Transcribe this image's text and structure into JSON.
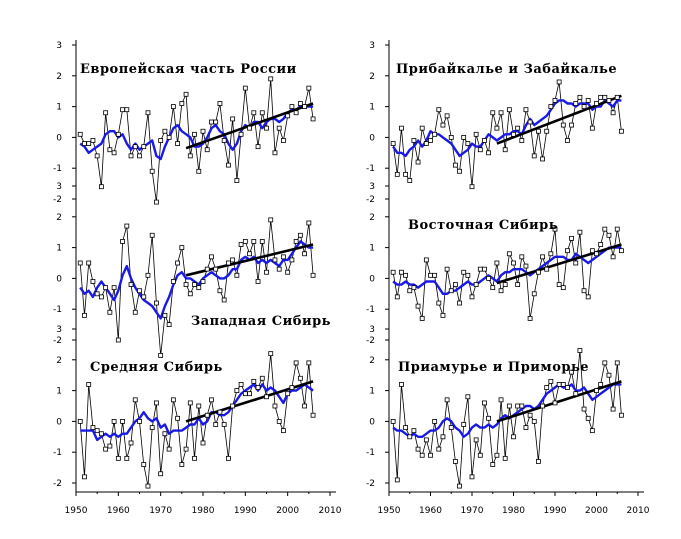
{
  "chart_data": {
    "type": "line",
    "x_ticks": [
      1950,
      1960,
      1970,
      1980,
      1990,
      2000,
      2010
    ],
    "y_ticks": [
      3,
      2,
      1,
      0,
      -1,
      -2
    ],
    "xlim": [
      1950,
      2010
    ],
    "ylim": [
      -2.3,
      3.0
    ],
    "colors": {
      "annual": "#000000",
      "smoothed": "#1a1ae6",
      "trend": "#000000"
    },
    "panels": [
      {
        "title": "Европейская часть России",
        "col": 0,
        "row": 0,
        "annual": [
          0.1,
          -0.2,
          -0.2,
          -0.1,
          -0.6,
          -1.6,
          0.8,
          -0.4,
          -0.5,
          0.1,
          0.9,
          0.9,
          -0.6,
          -0.3,
          -0.6,
          -0.3,
          0.8,
          -1.1,
          -2.1,
          -0.1,
          0.2,
          0.0,
          1.0,
          -0.2,
          1.1,
          1.4,
          -0.6,
          0.1,
          -1.1,
          0.2,
          -0.4,
          0.5,
          0.5,
          1.1,
          -0.1,
          -0.9,
          0.6,
          -1.4,
          0.1,
          1.6,
          0.3,
          0.8,
          -0.3,
          0.8,
          0.3,
          1.9,
          -0.5,
          0.3,
          -0.1,
          0.7,
          1.0,
          0.8,
          1.1,
          1.0,
          1.6,
          0.6
        ],
        "smoothed": [
          -0.2,
          -0.3,
          -0.5,
          -0.4,
          -0.3,
          -0.2,
          0.1,
          0.2,
          0.2,
          0.0,
          0.1,
          -0.2,
          -0.4,
          -0.2,
          -0.4,
          -0.3,
          -0.2,
          -0.1,
          -0.6,
          -0.7,
          -0.3,
          0.0,
          0.3,
          0.4,
          0.2,
          0.1,
          0.0,
          -0.3,
          -0.3,
          -0.2,
          0.0,
          0.3,
          0.4,
          0.2,
          0.1,
          -0.2,
          -0.4,
          -0.2,
          0.2,
          0.4,
          0.3,
          0.5,
          0.5,
          0.3,
          0.5,
          0.6,
          0.6,
          0.5,
          0.6,
          0.8,
          0.9,
          0.9,
          1.0,
          1.0,
          1.0,
          1.0
        ],
        "trend": {
          "x": [
            1976,
            2006
          ],
          "y": [
            -0.35,
            1.1
          ]
        }
      },
      {
        "title": "Западная Сибирь",
        "col": 0,
        "row": 1,
        "annual": [
          0.5,
          -1.2,
          0.5,
          -0.1,
          -0.5,
          -0.6,
          -0.3,
          -1.1,
          -0.3,
          -2.0,
          1.2,
          1.7,
          -0.2,
          -1.1,
          -0.4,
          -0.6,
          0.1,
          1.4,
          -0.8,
          -2.5,
          -1.2,
          -1.5,
          -0.1,
          0.5,
          1.0,
          -0.2,
          -0.5,
          -0.2,
          -0.3,
          -0.1,
          0.3,
          0.7,
          0.3,
          -0.4,
          -0.7,
          0.5,
          0.6,
          0.1,
          1.1,
          1.2,
          0.8,
          1.2,
          -0.1,
          1.2,
          0.2,
          1.9,
          0.6,
          0.3,
          0.7,
          0.2,
          0.6,
          1.2,
          1.4,
          0.8,
          1.8,
          0.1
        ],
        "smoothed": [
          -0.3,
          -0.5,
          -0.4,
          -0.6,
          -0.3,
          -0.1,
          -0.3,
          -0.5,
          -0.7,
          -0.4,
          0.1,
          0.4,
          0.0,
          -0.3,
          -0.5,
          -0.7,
          -0.8,
          -0.9,
          -1.1,
          -1.3,
          -0.9,
          -0.6,
          -0.2,
          0.1,
          0.2,
          0.0,
          0.0,
          -0.1,
          -0.2,
          0.0,
          0.1,
          0.2,
          0.1,
          0.0,
          0.0,
          0.1,
          0.3,
          0.3,
          0.6,
          0.7,
          0.6,
          0.7,
          0.5,
          0.6,
          0.5,
          0.6,
          0.5,
          0.4,
          0.6,
          0.6,
          0.8,
          1.0,
          1.2,
          1.1,
          1.0,
          1.0
        ],
        "trend": {
          "x": [
            1976,
            2006
          ],
          "y": [
            0.1,
            1.1
          ]
        }
      },
      {
        "title": "Средняя Сибирь",
        "col": 0,
        "row": 2,
        "annual": [
          0.0,
          -1.8,
          1.2,
          -0.2,
          -0.3,
          -0.4,
          -0.9,
          -0.8,
          0.0,
          -1.2,
          0.0,
          -1.2,
          -0.7,
          0.7,
          0.0,
          -1.4,
          -2.1,
          -0.2,
          0.6,
          -1.7,
          -0.4,
          -0.9,
          0.7,
          0.1,
          -1.4,
          -0.9,
          0.6,
          -1.2,
          0.5,
          -0.7,
          0.2,
          0.7,
          -0.1,
          0.3,
          -0.1,
          -1.2,
          0.5,
          1.0,
          1.2,
          0.9,
          0.9,
          1.3,
          1.1,
          1.4,
          0.8,
          2.2,
          0.5,
          0.0,
          -0.3,
          0.9,
          1.1,
          1.9,
          1.4,
          0.5,
          1.9,
          0.2
        ],
        "smoothed": [
          -0.3,
          -0.3,
          -0.3,
          -0.3,
          -0.6,
          -0.5,
          -0.4,
          -0.5,
          -0.4,
          -0.5,
          -0.4,
          -0.4,
          -0.2,
          0.0,
          0.1,
          0.3,
          0.1,
          0.0,
          0.1,
          -0.2,
          -0.1,
          -0.4,
          -0.3,
          -0.3,
          -0.3,
          -0.2,
          -0.1,
          -0.1,
          0.1,
          -0.1,
          0.0,
          0.3,
          0.3,
          0.2,
          0.2,
          0.3,
          0.5,
          0.7,
          0.9,
          1.0,
          1.1,
          1.2,
          1.0,
          1.2,
          1.0,
          1.1,
          1.0,
          0.8,
          0.6,
          0.9,
          1.0,
          1.0,
          1.1,
          1.2,
          1.1,
          1.0
        ],
        "trend": {
          "x": [
            1976,
            2006
          ],
          "y": [
            0.0,
            1.3
          ]
        }
      },
      {
        "title": "Прибайкалье и Забайкалье",
        "col": 1,
        "row": 0,
        "annual": [
          -0.2,
          -1.2,
          0.3,
          -1.2,
          -1.4,
          -0.1,
          -0.8,
          0.3,
          -0.2,
          -0.1,
          0.1,
          0.9,
          0.4,
          0.7,
          0.0,
          -0.9,
          -1.1,
          0.0,
          -0.2,
          -1.6,
          0.1,
          -0.4,
          -0.1,
          -0.5,
          0.8,
          0.3,
          0.8,
          -0.4,
          0.9,
          0.1,
          0.3,
          -0.1,
          0.9,
          0.5,
          -0.6,
          0.2,
          -0.7,
          0.2,
          1.0,
          1.2,
          1.8,
          0.4,
          -0.1,
          0.4,
          1.1,
          1.3,
          1.0,
          1.2,
          0.3,
          1.1,
          1.3,
          1.3,
          1.2,
          0.8,
          1.3,
          0.2
        ],
        "smoothed": [
          -0.3,
          -0.5,
          -0.5,
          -0.6,
          -0.4,
          -0.3,
          -0.1,
          -0.3,
          -0.1,
          0.2,
          0.1,
          0.1,
          0.0,
          -0.1,
          -0.2,
          -0.4,
          -0.6,
          -0.5,
          -0.4,
          -0.2,
          -0.3,
          -0.3,
          -0.1,
          0.1,
          0.0,
          -0.1,
          0.0,
          0.1,
          0.1,
          0.2,
          0.2,
          0.1,
          0.4,
          0.6,
          0.4,
          0.5,
          0.6,
          0.7,
          0.9,
          1.1,
          1.2,
          1.2,
          1.1,
          1.1,
          1.0,
          1.1,
          1.1,
          1.1,
          0.9,
          1.0,
          1.0,
          1.2,
          1.1,
          1.0,
          1.2,
          1.2
        ],
        "trend": {
          "x": [
            1976,
            2006
          ],
          "y": [
            -0.2,
            1.35
          ]
        }
      },
      {
        "title": "Восточная Сибирь",
        "col": 1,
        "row": 1,
        "annual": [
          0.2,
          -0.6,
          0.2,
          0.1,
          -0.4,
          -0.3,
          -0.9,
          -1.3,
          0.6,
          0.1,
          0.1,
          -0.8,
          -1.2,
          0.3,
          -0.4,
          -0.2,
          -0.8,
          0.2,
          0.1,
          -0.6,
          -0.2,
          0.3,
          0.3,
          0.0,
          -0.3,
          0.5,
          -0.4,
          -0.2,
          0.8,
          0.5,
          -0.2,
          0.7,
          0.4,
          -1.3,
          -0.5,
          0.2,
          0.7,
          0.3,
          0.8,
          1.6,
          -0.2,
          -0.3,
          0.9,
          1.3,
          0.5,
          1.5,
          -0.4,
          -0.6,
          0.9,
          0.8,
          1.1,
          1.6,
          1.4,
          0.7,
          1.6,
          0.9
        ],
        "smoothed": [
          -0.1,
          -0.2,
          -0.2,
          -0.1,
          -0.2,
          -0.2,
          -0.3,
          -0.2,
          -0.1,
          -0.1,
          -0.1,
          -0.3,
          -0.5,
          -0.5,
          -0.4,
          -0.4,
          -0.3,
          -0.2,
          -0.1,
          -0.2,
          -0.2,
          -0.1,
          0.0,
          0.1,
          0.0,
          -0.1,
          0.1,
          0.2,
          0.2,
          0.3,
          0.3,
          0.3,
          0.2,
          0.1,
          0.2,
          0.3,
          0.4,
          0.5,
          0.6,
          0.7,
          0.7,
          0.7,
          0.6,
          0.6,
          0.8,
          0.7,
          0.6,
          0.5,
          0.6,
          0.7,
          0.8,
          0.9,
          1.0,
          1.0,
          1.0,
          1.0
        ],
        "trend": {
          "x": [
            1976,
            2006
          ],
          "y": [
            -0.15,
            1.1
          ]
        }
      },
      {
        "title": "Приамурье и Приморье",
        "col": 1,
        "row": 2,
        "annual": [
          0.0,
          -1.9,
          1.2,
          -0.2,
          -0.5,
          -0.3,
          -0.9,
          -1.1,
          -0.6,
          -1.1,
          0.0,
          -0.9,
          -0.5,
          0.7,
          -0.2,
          -1.3,
          -2.1,
          -0.1,
          0.8,
          -1.8,
          -0.6,
          -1.1,
          0.6,
          0.1,
          -1.4,
          -1.1,
          0.7,
          -1.2,
          0.5,
          -0.5,
          0.5,
          0.5,
          -0.2,
          0.2,
          0.0,
          -1.3,
          0.5,
          1.1,
          1.3,
          0.6,
          1.2,
          1.2,
          1.1,
          1.6,
          0.9,
          2.3,
          0.4,
          0.1,
          -0.3,
          1.0,
          1.2,
          1.9,
          1.5,
          0.4,
          1.9,
          0.2
        ],
        "smoothed": [
          -0.2,
          -0.3,
          -0.3,
          -0.4,
          -0.5,
          -0.4,
          -0.5,
          -0.5,
          -0.4,
          -0.3,
          -0.3,
          -0.2,
          0.0,
          0.1,
          0.0,
          -0.2,
          -0.3,
          -0.5,
          -0.4,
          -0.2,
          -0.1,
          -0.2,
          -0.2,
          -0.1,
          -0.2,
          -0.1,
          0.1,
          0.2,
          0.1,
          0.2,
          0.3,
          0.4,
          0.5,
          0.5,
          0.4,
          0.5,
          0.7,
          0.9,
          1.0,
          1.1,
          1.2,
          1.1,
          1.1,
          1.2,
          1.0,
          1.0,
          1.1,
          0.9,
          0.7,
          0.8,
          0.9,
          1.0,
          1.1,
          1.2,
          1.2,
          1.2
        ],
        "trend": {
          "x": [
            1976,
            2006
          ],
          "y": [
            0.0,
            1.3
          ]
        }
      }
    ]
  }
}
